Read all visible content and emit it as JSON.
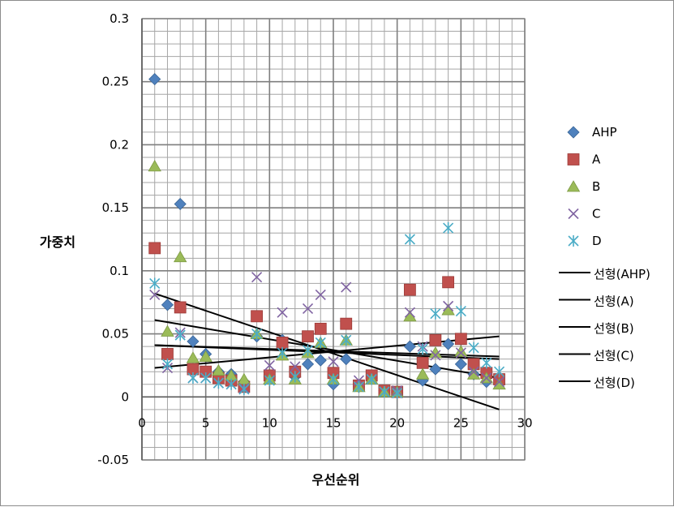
{
  "chart_data": {
    "type": "scatter",
    "title": "",
    "xlabel": "우선순위",
    "ylabel": "가중치",
    "xlim": [
      0,
      30
    ],
    "ylim": [
      -0.05,
      0.3
    ],
    "x_ticks": [
      "0",
      "5",
      "10",
      "15",
      "20",
      "25",
      "30"
    ],
    "y_ticks": [
      "-0.05",
      "0",
      "0.05",
      "0.1",
      "0.15",
      "0.2",
      "0.25",
      "0.3"
    ],
    "grid": true,
    "minor_grid": true,
    "legend_position": "right",
    "series": [
      {
        "name": "AHP",
        "marker": "diamond",
        "color": "#4f81bd",
        "points": [
          [
            1,
            0.252
          ],
          [
            2,
            0.073
          ],
          [
            3,
            0.153
          ],
          [
            4,
            0.044
          ],
          [
            5,
            0.034
          ],
          [
            6,
            0.02
          ],
          [
            7,
            0.018
          ],
          [
            8,
            0.012
          ],
          [
            9,
            0.048
          ],
          [
            10,
            0.016
          ],
          [
            11,
            0.045
          ],
          [
            12,
            0.016
          ],
          [
            13,
            0.026
          ],
          [
            14,
            0.029
          ],
          [
            15,
            0.01
          ],
          [
            16,
            0.03
          ],
          [
            17,
            0.008
          ],
          [
            18,
            0.015
          ],
          [
            19,
            0.005
          ],
          [
            20,
            0.004
          ],
          [
            21,
            0.04
          ],
          [
            22,
            0.013
          ],
          [
            23,
            0.022
          ],
          [
            24,
            0.042
          ],
          [
            25,
            0.026
          ],
          [
            26,
            0.018
          ],
          [
            27,
            0.012
          ],
          [
            28,
            0.011
          ]
        ]
      },
      {
        "name": "A",
        "marker": "square",
        "color": "#c0504d",
        "points": [
          [
            1,
            0.118
          ],
          [
            2,
            0.034
          ],
          [
            3,
            0.071
          ],
          [
            4,
            0.022
          ],
          [
            5,
            0.02
          ],
          [
            6,
            0.015
          ],
          [
            7,
            0.013
          ],
          [
            8,
            0.008
          ],
          [
            9,
            0.064
          ],
          [
            10,
            0.017
          ],
          [
            11,
            0.043
          ],
          [
            12,
            0.02
          ],
          [
            13,
            0.048
          ],
          [
            14,
            0.054
          ],
          [
            15,
            0.019
          ],
          [
            16,
            0.058
          ],
          [
            17,
            0.009
          ],
          [
            18,
            0.017
          ],
          [
            19,
            0.005
          ],
          [
            20,
            0.004
          ],
          [
            21,
            0.085
          ],
          [
            22,
            0.027
          ],
          [
            23,
            0.045
          ],
          [
            24,
            0.091
          ],
          [
            25,
            0.046
          ],
          [
            26,
            0.026
          ],
          [
            27,
            0.019
          ],
          [
            28,
            0.014
          ]
        ]
      },
      {
        "name": "B",
        "marker": "triangle",
        "color": "#9bbb59",
        "points": [
          [
            1,
            0.183
          ],
          [
            2,
            0.052
          ],
          [
            3,
            0.111
          ],
          [
            4,
            0.031
          ],
          [
            5,
            0.032
          ],
          [
            6,
            0.021
          ],
          [
            7,
            0.017
          ],
          [
            8,
            0.014
          ],
          [
            9,
            0.05
          ],
          [
            10,
            0.014
          ],
          [
            11,
            0.033
          ],
          [
            12,
            0.014
          ],
          [
            13,
            0.035
          ],
          [
            14,
            0.043
          ],
          [
            15,
            0.014
          ],
          [
            16,
            0.045
          ],
          [
            17,
            0.008
          ],
          [
            18,
            0.014
          ],
          [
            19,
            0.004
          ],
          [
            20,
            0.004
          ],
          [
            21,
            0.064
          ],
          [
            22,
            0.018
          ],
          [
            23,
            0.035
          ],
          [
            24,
            0.069
          ],
          [
            25,
            0.036
          ],
          [
            26,
            0.018
          ],
          [
            27,
            0.015
          ],
          [
            28,
            0.01
          ]
        ]
      },
      {
        "name": "C",
        "marker": "x",
        "color": "#8064a2",
        "points": [
          [
            1,
            0.081
          ],
          [
            2,
            0.023
          ],
          [
            3,
            0.051
          ],
          [
            4,
            0.015
          ],
          [
            5,
            0.015
          ],
          [
            6,
            0.011
          ],
          [
            7,
            0.01
          ],
          [
            8,
            0.007
          ],
          [
            9,
            0.095
          ],
          [
            10,
            0.025
          ],
          [
            11,
            0.067
          ],
          [
            12,
            0.024
          ],
          [
            13,
            0.07
          ],
          [
            14,
            0.081
          ],
          [
            15,
            0.028
          ],
          [
            16,
            0.087
          ],
          [
            17,
            0.013
          ],
          [
            18,
            0.014
          ],
          [
            19,
            0.004
          ],
          [
            20,
            0.005
          ],
          [
            21,
            0.067
          ],
          [
            22,
            0.04
          ],
          [
            23,
            0.033
          ],
          [
            24,
            0.072
          ],
          [
            25,
            0.035
          ],
          [
            26,
            0.02
          ],
          [
            27,
            0.015
          ],
          [
            28,
            0.012
          ]
        ]
      },
      {
        "name": "D",
        "marker": "star",
        "color": "#4bacc6",
        "points": [
          [
            1,
            0.09
          ],
          [
            2,
            0.026
          ],
          [
            3,
            0.049
          ],
          [
            4,
            0.015
          ],
          [
            5,
            0.015
          ],
          [
            6,
            0.011
          ],
          [
            7,
            0.01
          ],
          [
            8,
            0.006
          ],
          [
            9,
            0.05
          ],
          [
            10,
            0.013
          ],
          [
            11,
            0.035
          ],
          [
            12,
            0.016
          ],
          [
            13,
            0.037
          ],
          [
            14,
            0.043
          ],
          [
            15,
            0.014
          ],
          [
            16,
            0.045
          ],
          [
            17,
            0.008
          ],
          [
            18,
            0.014
          ],
          [
            19,
            0.004
          ],
          [
            20,
            0.003
          ],
          [
            21,
            0.125
          ],
          [
            22,
            0.038
          ],
          [
            23,
            0.066
          ],
          [
            24,
            0.134
          ],
          [
            25,
            0.068
          ],
          [
            26,
            0.039
          ],
          [
            27,
            0.027
          ],
          [
            28,
            0.02
          ]
        ]
      }
    ],
    "trendlines": [
      {
        "name": "선형(AHP)",
        "color": "#000000",
        "x": [
          1,
          28
        ],
        "y": [
          0.082,
          -0.01
        ]
      },
      {
        "name": "선형(A)",
        "color": "#000000",
        "x": [
          1,
          28
        ],
        "y": [
          0.023,
          0.048
        ]
      },
      {
        "name": "선형(B)",
        "color": "#000000",
        "x": [
          1,
          28
        ],
        "y": [
          0.061,
          0.015
        ]
      },
      {
        "name": "선형(C)",
        "color": "#000000",
        "x": [
          1,
          28
        ],
        "y": [
          0.041,
          0.03
        ]
      },
      {
        "name": "선형(D)",
        "color": "#000000",
        "x": [
          1,
          28
        ],
        "y": [
          0.041,
          0.032
        ]
      }
    ]
  }
}
